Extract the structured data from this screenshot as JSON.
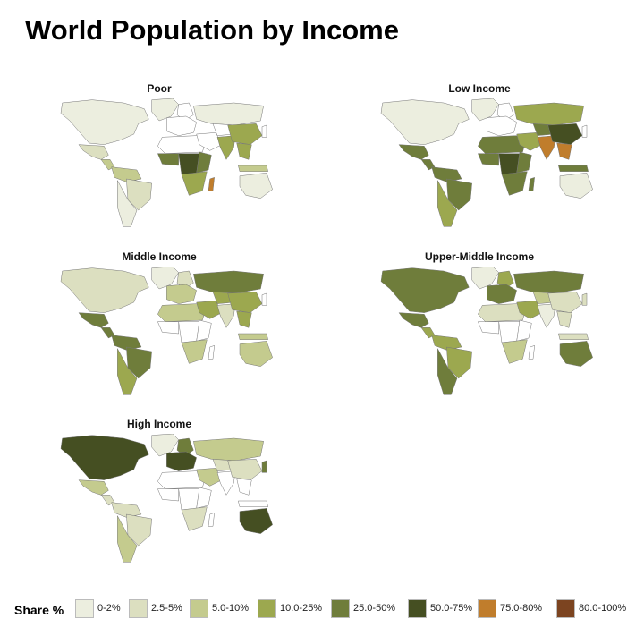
{
  "title": "World Population by Income",
  "palette": {
    "0-2%": "#eceedf",
    "2.5-5%": "#dcdfc0",
    "5.0-10%": "#c4cb8e",
    "10.0-25%": "#9ca84f",
    "25.0-50%": "#6f7d3b",
    "50.0-75%": "#454f22",
    "75.0-80%": "#c07d2c",
    "80.0-100%": "#7c4420",
    "none": "#ffffff"
  },
  "panels": [
    {
      "title": "Poor",
      "regions": {
        "north_america": "0-2%",
        "greenland": "0-2%",
        "mexico": "2.5-5%",
        "central_america": "5.0-10%",
        "south_america_north": "5.0-10%",
        "brazil": "2.5-5%",
        "south_america_south": "0-2%",
        "europe": "none",
        "scandinavia": "none",
        "russia": "0-2%",
        "middle_east": "none",
        "north_africa": "none",
        "west_africa": "25.0-50%",
        "central_africa": "50.0-75%",
        "east_africa": "25.0-50%",
        "southern_africa": "10.0-25%",
        "madagascar": "75.0-80%",
        "central_asia": "none",
        "india": "10.0-25%",
        "china": "10.0-25%",
        "southeast_asia": "10.0-25%",
        "indonesia": "5.0-10%",
        "japan": "none",
        "australia": "0-2%"
      }
    },
    {
      "title": "Low Income",
      "regions": {
        "north_america": "0-2%",
        "greenland": "0-2%",
        "mexico": "25.0-50%",
        "central_america": "25.0-50%",
        "south_america_north": "25.0-50%",
        "brazil": "25.0-50%",
        "south_america_south": "10.0-25%",
        "europe": "none",
        "scandinavia": "none",
        "russia": "10.0-25%",
        "middle_east": "10.0-25%",
        "north_africa": "25.0-50%",
        "west_africa": "25.0-50%",
        "central_africa": "50.0-75%",
        "east_africa": "25.0-50%",
        "southern_africa": "25.0-50%",
        "madagascar": "25.0-50%",
        "central_asia": "25.0-50%",
        "india": "75.0-80%",
        "china": "50.0-75%",
        "southeast_asia": "75.0-80%",
        "indonesia": "25.0-50%",
        "japan": "none",
        "australia": "0-2%"
      }
    },
    {
      "title": "Middle Income",
      "regions": {
        "north_america": "2.5-5%",
        "greenland": "0-2%",
        "mexico": "25.0-50%",
        "central_america": "25.0-50%",
        "south_america_north": "25.0-50%",
        "brazil": "25.0-50%",
        "south_america_south": "10.0-25%",
        "europe": "5.0-10%",
        "scandinavia": "2.5-5%",
        "russia": "25.0-50%",
        "middle_east": "10.0-25%",
        "north_africa": "5.0-10%",
        "west_africa": "none",
        "central_africa": "none",
        "east_africa": "none",
        "southern_africa": "5.0-10%",
        "madagascar": "none",
        "central_asia": "10.0-25%",
        "india": "2.5-5%",
        "china": "10.0-25%",
        "southeast_asia": "10.0-25%",
        "indonesia": "5.0-10%",
        "japan": "none",
        "australia": "5.0-10%"
      }
    },
    {
      "title": "Upper-Middle Income",
      "regions": {
        "north_america": "25.0-50%",
        "greenland": "0-2%",
        "mexico": "25.0-50%",
        "central_america": "10.0-25%",
        "south_america_north": "10.0-25%",
        "brazil": "10.0-25%",
        "south_america_south": "25.0-50%",
        "europe": "25.0-50%",
        "scandinavia": "10.0-25%",
        "russia": "25.0-50%",
        "middle_east": "10.0-25%",
        "north_africa": "2.5-5%",
        "west_africa": "none",
        "central_africa": "none",
        "east_africa": "none",
        "southern_africa": "5.0-10%",
        "madagascar": "none",
        "central_asia": "5.0-10%",
        "india": "0-2%",
        "china": "2.5-5%",
        "southeast_asia": "2.5-5%",
        "indonesia": "2.5-5%",
        "japan": "2.5-5%",
        "australia": "25.0-50%"
      }
    },
    {
      "title": "High Income",
      "regions": {
        "north_america": "50.0-75%",
        "greenland": "0-2%",
        "mexico": "5.0-10%",
        "central_america": "2.5-5%",
        "south_america_north": "2.5-5%",
        "brazil": "2.5-5%",
        "south_america_south": "5.0-10%",
        "europe": "50.0-75%",
        "scandinavia": "25.0-50%",
        "russia": "5.0-10%",
        "middle_east": "5.0-10%",
        "north_africa": "none",
        "west_africa": "none",
        "central_africa": "none",
        "east_africa": "none",
        "southern_africa": "2.5-5%",
        "madagascar": "none",
        "central_asia": "2.5-5%",
        "india": "none",
        "china": "2.5-5%",
        "southeast_asia": "none",
        "indonesia": "none",
        "japan": "25.0-50%",
        "australia": "50.0-75%"
      }
    }
  ],
  "legend": {
    "title": "Share %",
    "items": [
      "0-2%",
      "2.5-5%",
      "5.0-10%",
      "10.0-25%",
      "25.0-50%",
      "50.0-75%",
      "75.0-80%",
      "80.0-100%"
    ]
  }
}
